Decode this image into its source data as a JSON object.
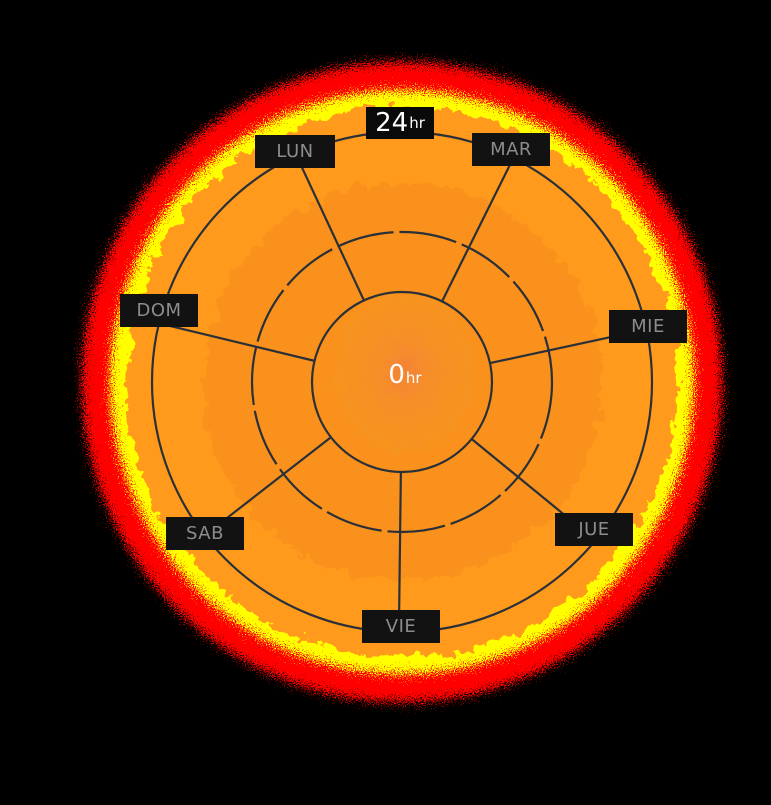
{
  "chart_data": {
    "type": "radial-heatmap",
    "title": "",
    "days": [
      "LUN",
      "MAR",
      "MIE",
      "JUE",
      "VIE",
      "SAB",
      "DOM"
    ],
    "radial_axis": {
      "min": {
        "value": "0",
        "unit": "hr"
      },
      "max": {
        "value": "24",
        "unit": "hr"
      },
      "rings": 3
    },
    "color_scale": [
      "#ff0000",
      "#ffff00",
      "#ff9a1f",
      "#f58a1c"
    ],
    "background": "#000000",
    "line_color": "#2a3038",
    "label_bg": "#121212",
    "label_color": "#8c8c8c"
  }
}
